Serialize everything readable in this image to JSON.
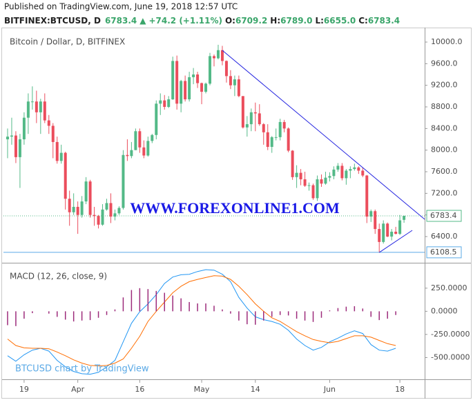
{
  "header": {
    "published": "Published on TradingView.com, June 19, 2018 12:57 UTC",
    "symbol": "BITFINEX:BTCUSD, D",
    "last": "6783.4",
    "change": "+74.2 (+1.11%)",
    "o_label": "O:",
    "o": "6709.2",
    "h_label": "H:",
    "h": "6789.0",
    "l_label": "L:",
    "l": "6655.0",
    "c_label": "C:",
    "c": "6783.4"
  },
  "chart_data": [
    {
      "type": "candlestick",
      "title": "Bitcoin / Dollar, D, BITFINEX",
      "watermark": "WWW.FOREXONLINE1.COM",
      "up_color": "#53b987",
      "down_color": "#eb4d5c",
      "x": [
        "2018-03-15",
        "2018-03-16",
        "2018-03-17",
        "2018-03-18",
        "2018-03-19",
        "2018-03-20",
        "2018-03-21",
        "2018-03-22",
        "2018-03-23",
        "2018-03-24",
        "2018-03-25",
        "2018-03-26",
        "2018-03-27",
        "2018-03-28",
        "2018-03-29",
        "2018-03-30",
        "2018-03-31",
        "2018-04-01",
        "2018-04-02",
        "2018-04-03",
        "2018-04-04",
        "2018-04-05",
        "2018-04-06",
        "2018-04-07",
        "2018-04-08",
        "2018-04-09",
        "2018-04-10",
        "2018-04-11",
        "2018-04-12",
        "2018-04-13",
        "2018-04-14",
        "2018-04-15",
        "2018-04-16",
        "2018-04-17",
        "2018-04-18",
        "2018-04-19",
        "2018-04-20",
        "2018-04-21",
        "2018-04-22",
        "2018-04-23",
        "2018-04-24",
        "2018-04-25",
        "2018-04-26",
        "2018-04-27",
        "2018-04-28",
        "2018-04-29",
        "2018-04-30",
        "2018-05-01",
        "2018-05-02",
        "2018-05-03",
        "2018-05-04",
        "2018-05-05",
        "2018-05-06",
        "2018-05-07",
        "2018-05-08",
        "2018-05-09",
        "2018-05-10",
        "2018-05-11",
        "2018-05-12",
        "2018-05-13",
        "2018-05-14",
        "2018-05-15",
        "2018-05-16",
        "2018-05-17",
        "2018-05-18",
        "2018-05-19",
        "2018-05-20",
        "2018-05-21",
        "2018-05-22",
        "2018-05-23",
        "2018-05-24",
        "2018-05-25",
        "2018-05-26",
        "2018-05-27",
        "2018-05-28",
        "2018-05-29",
        "2018-05-30",
        "2018-05-31",
        "2018-06-01",
        "2018-06-02",
        "2018-06-03",
        "2018-06-04",
        "2018-06-05",
        "2018-06-06",
        "2018-06-07",
        "2018-06-08",
        "2018-06-09",
        "2018-06-10",
        "2018-06-11",
        "2018-06-12",
        "2018-06-13",
        "2018-06-14",
        "2018-06-15",
        "2018-06-16",
        "2018-06-17",
        "2018-06-18",
        "2018-06-19"
      ],
      "open": [
        8200,
        8250,
        8270,
        7870,
        8200,
        8600,
        8900,
        8900,
        8700,
        8900,
        8550,
        8450,
        8150,
        7800,
        7950,
        7100,
        6850,
        6950,
        6800,
        7050,
        7420,
        6800,
        6780,
        6620,
        6900,
        7020,
        6770,
        6830,
        6930,
        7910,
        7890,
        8000,
        8350,
        8050,
        7900,
        8170,
        8280,
        8860,
        8920,
        8800,
        8940,
        9650,
        8860,
        9280,
        8940,
        9350,
        9400,
        9240,
        9080,
        9230,
        9740,
        9700,
        9850,
        9650,
        9370,
        9200,
        9310,
        9000,
        8420,
        8480,
        8700,
        8680,
        8480,
        8330,
        8060,
        8240,
        8240,
        8520,
        8400,
        7990,
        7500,
        7580,
        7460,
        7340,
        7350,
        7110,
        7460,
        7380,
        7490,
        7520,
        7640,
        7710,
        7480,
        7620,
        7650,
        7680,
        7620,
        7530,
        6770,
        6870,
        6540,
        6300,
        6640,
        6400,
        6490,
        6450,
        6709.2
      ],
      "high": [
        8400,
        8600,
        8350,
        8300,
        8700,
        9050,
        9180,
        9100,
        8950,
        9050,
        8650,
        8500,
        8250,
        8100,
        7970,
        7250,
        7200,
        7050,
        7150,
        7500,
        7450,
        6950,
        6800,
        7000,
        7100,
        7200,
        6900,
        6960,
        8000,
        8200,
        8150,
        8400,
        8400,
        8180,
        8250,
        8300,
        8920,
        9050,
        9020,
        9000,
        9730,
        9750,
        9300,
        9380,
        9450,
        9520,
        9450,
        9250,
        9250,
        9800,
        9770,
        9950,
        9930,
        9660,
        9480,
        9380,
        9380,
        9000,
        8630,
        8770,
        8880,
        8850,
        8500,
        8480,
        8260,
        8400,
        8580,
        8560,
        8420,
        8000,
        7720,
        7650,
        7600,
        7400,
        7380,
        7530,
        7550,
        7600,
        7590,
        7700,
        7760,
        7760,
        7650,
        7700,
        7750,
        7700,
        7680,
        7540,
        6900,
        6900,
        6640,
        6700,
        6660,
        6540,
        6580,
        6800,
        6789.0
      ],
      "low": [
        7850,
        8100,
        7760,
        7300,
        8100,
        8300,
        8750,
        8500,
        8300,
        8500,
        8300,
        7850,
        7750,
        7750,
        6900,
        6600,
        6800,
        6450,
        6750,
        7000,
        6750,
        6600,
        6550,
        6600,
        6880,
        6650,
        6700,
        6800,
        6900,
        7800,
        7850,
        8000,
        7950,
        7850,
        7880,
        8130,
        8200,
        8650,
        8750,
        8780,
        8930,
        8750,
        8700,
        8900,
        8900,
        9220,
        9150,
        8850,
        9050,
        9200,
        9550,
        9680,
        9570,
        9250,
        9130,
        9000,
        8980,
        8400,
        8250,
        8350,
        8350,
        8450,
        8100,
        8000,
        7950,
        8180,
        8180,
        8330,
        7960,
        7450,
        7300,
        7350,
        7320,
        7250,
        7080,
        7060,
        7320,
        7360,
        7420,
        7460,
        7600,
        7440,
        7360,
        7480,
        7620,
        7560,
        7500,
        6650,
        6670,
        6450,
        6108.5,
        6270,
        6390,
        6330,
        6440,
        6430,
        6655.0
      ],
      "close": [
        8250,
        8270,
        7870,
        8200,
        8600,
        8900,
        8900,
        8700,
        8900,
        8550,
        8450,
        8150,
        7800,
        7950,
        7100,
        6850,
        6950,
        6800,
        7050,
        7420,
        6800,
        6780,
        6620,
        6900,
        7020,
        6770,
        6830,
        6930,
        7910,
        7890,
        8000,
        8350,
        8050,
        7900,
        8170,
        8280,
        8860,
        8920,
        8800,
        8940,
        9650,
        8860,
        9280,
        8940,
        9350,
        9400,
        9240,
        9080,
        9230,
        9740,
        9700,
        9850,
        9650,
        9370,
        9200,
        9310,
        9000,
        8420,
        8480,
        8700,
        8680,
        8480,
        8330,
        8060,
        8240,
        8240,
        8520,
        8400,
        7990,
        7500,
        7580,
        7460,
        7340,
        7350,
        7110,
        7460,
        7380,
        7490,
        7520,
        7640,
        7710,
        7480,
        7620,
        7650,
        7680,
        7620,
        7530,
        6770,
        6870,
        6540,
        6300,
        6640,
        6400,
        6490,
        6450,
        6700,
        6783.4
      ],
      "xlim": [
        "2018-03-14",
        "2018-06-24"
      ],
      "xticks": [
        {
          "value": "2018-03-19",
          "label": "19"
        },
        {
          "value": "2018-04-01",
          "label": "Apr"
        },
        {
          "value": "2018-04-16",
          "label": "16"
        },
        {
          "value": "2018-05-01",
          "label": "May"
        },
        {
          "value": "2018-05-14",
          "label": "14"
        },
        {
          "value": "2018-06-01",
          "label": "Jun"
        },
        {
          "value": "2018-06-18",
          "label": "18"
        }
      ],
      "ylim": [
        5928,
        10268
      ],
      "yticks": [
        {
          "value": 6400,
          "label": "6400.0"
        },
        {
          "value": 6800,
          "label": "6800.0"
        },
        {
          "value": 7200,
          "label": "7200.0"
        },
        {
          "value": 7600,
          "label": "7600.0"
        },
        {
          "value": 8000,
          "label": "8000.0"
        },
        {
          "value": 8400,
          "label": "8400.0"
        },
        {
          "value": 8800,
          "label": "8800.0"
        },
        {
          "value": 9200,
          "label": "9200.0"
        },
        {
          "value": 9600,
          "label": "9600.0"
        },
        {
          "value": 10000,
          "label": "10000.0"
        }
      ],
      "last_price": 6783.4,
      "last_price_color": "#53b987",
      "low_line": 6108.5,
      "low_line_color": "#5aa9e6",
      "trendlines": [
        {
          "color": "#2424e0",
          "points": [
            [
              "2018-05-06",
              9847
            ],
            [
              "2018-06-24",
              6719
            ]
          ]
        },
        {
          "color": "#2424e0",
          "points": [
            [
              "2018-06-13",
              6106
            ],
            [
              "2018-06-21",
              6515
            ]
          ]
        }
      ]
    },
    {
      "type": "macd",
      "title": "MACD (12, 26, close, 9)",
      "credit": "BTCUSD chart by TradingView",
      "x": [
        "2018-03-15",
        "2018-03-17",
        "2018-03-19",
        "2018-03-21",
        "2018-03-23",
        "2018-03-25",
        "2018-03-27",
        "2018-03-29",
        "2018-03-31",
        "2018-04-02",
        "2018-04-04",
        "2018-04-06",
        "2018-04-08",
        "2018-04-10",
        "2018-04-12",
        "2018-04-14",
        "2018-04-16",
        "2018-04-18",
        "2018-04-20",
        "2018-04-22",
        "2018-04-24",
        "2018-04-26",
        "2018-04-28",
        "2018-04-30",
        "2018-05-02",
        "2018-05-04",
        "2018-05-06",
        "2018-05-08",
        "2018-05-10",
        "2018-05-12",
        "2018-05-14",
        "2018-05-16",
        "2018-05-18",
        "2018-05-20",
        "2018-05-22",
        "2018-05-24",
        "2018-05-26",
        "2018-05-28",
        "2018-05-30",
        "2018-06-01",
        "2018-06-03",
        "2018-06-05",
        "2018-06-07",
        "2018-06-09",
        "2018-06-11",
        "2018-06-13",
        "2018-06-15",
        "2018-06-17"
      ],
      "series": [
        {
          "color": "#2196f3",
          "values": [
            -480,
            -540,
            -470,
            -420,
            -400,
            -430,
            -530,
            -600,
            -650,
            -675,
            -680,
            -660,
            -600,
            -530,
            -330,
            -130,
            -5,
            80,
            180,
            300,
            370,
            395,
            400,
            430,
            450,
            445,
            400,
            320,
            150,
            35,
            -60,
            -90,
            -110,
            -140,
            -205,
            -300,
            -370,
            -420,
            -390,
            -330,
            -290,
            -245,
            -210,
            -240,
            -360,
            -420,
            -430,
            -400
          ]
        },
        {
          "color": "#ff6d00",
          "values": [
            -300,
            -370,
            -395,
            -400,
            -400,
            -405,
            -440,
            -480,
            -525,
            -560,
            -585,
            -590,
            -585,
            -560,
            -515,
            -400,
            -270,
            -110,
            0,
            100,
            200,
            270,
            320,
            345,
            365,
            385,
            380,
            345,
            270,
            180,
            80,
            0,
            -70,
            -110,
            -165,
            -220,
            -265,
            -305,
            -325,
            -340,
            -325,
            -295,
            -265,
            -265,
            -280,
            -315,
            -350,
            -370
          ]
        },
        {
          "color": "#9c2a7a",
          "style": "histogram",
          "values": [
            -150,
            -160,
            -80,
            -20,
            0,
            -25,
            -60,
            -90,
            -110,
            -100,
            -95,
            -70,
            -40,
            20,
            150,
            230,
            250,
            240,
            220,
            200,
            170,
            140,
            100,
            85,
            85,
            60,
            20,
            -25,
            -100,
            -140,
            -145,
            -100,
            -60,
            -40,
            -45,
            -80,
            -100,
            -115,
            -70,
            10,
            35,
            50,
            55,
            30,
            -60,
            -95,
            -80,
            -40
          ]
        }
      ],
      "ylim": [
        -735,
        517
      ],
      "yticks": [
        {
          "value": -500,
          "label": "-500.0000"
        },
        {
          "value": -250,
          "label": "-250.0000"
        },
        {
          "value": 0,
          "label": "0.0000"
        },
        {
          "value": 250,
          "label": "250.0000"
        }
      ]
    }
  ]
}
